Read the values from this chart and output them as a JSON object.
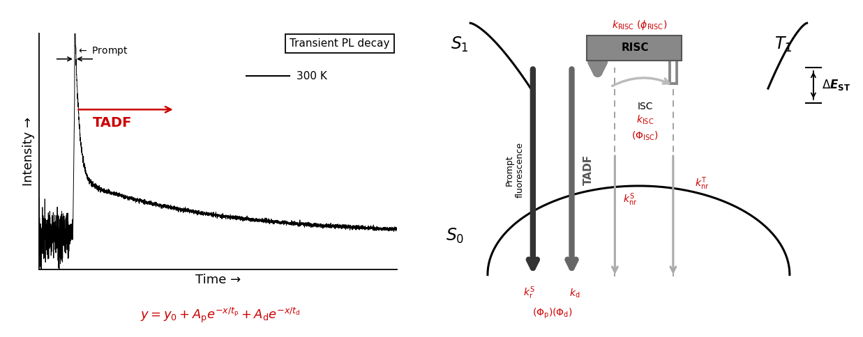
{
  "fig_width": 12.37,
  "fig_height": 4.84,
  "bg_color": "#ffffff",
  "left_panel": {
    "title": "Transient PL decay",
    "xlabel": "Time →",
    "ylabel": "Intensity →",
    "legend_label": "300 K",
    "prompt_label": "← Prompt",
    "tadf_label": "TADF",
    "red_color": "#cc0000",
    "line_color": "#000000"
  },
  "right_panel": {
    "red_color": "#cc0000",
    "dark_gray": "#444444",
    "mid_gray": "#777777",
    "light_gray": "#bbbbbb",
    "risc_fill": "#888888",
    "risc_border": "#555555"
  }
}
